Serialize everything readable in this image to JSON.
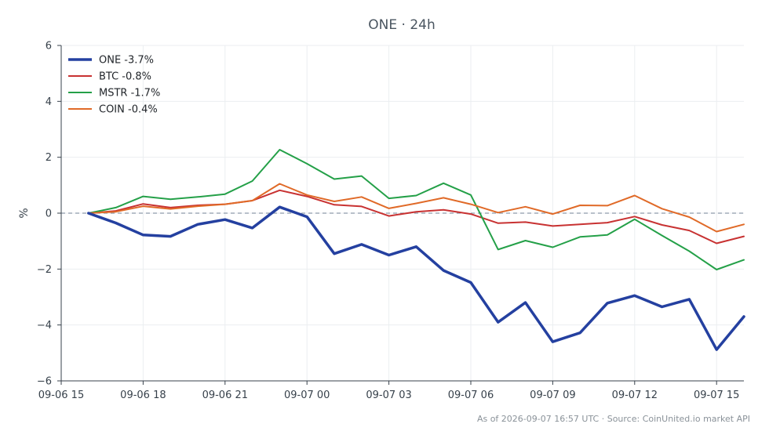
{
  "chart_data": {
    "type": "line",
    "title": "ONE · 24h",
    "xlabel": "",
    "ylabel": "%",
    "ylim": [
      -6,
      6
    ],
    "yticks": [
      -6,
      -4,
      -2,
      0,
      2,
      4,
      6
    ],
    "ytick_labels": [
      "−6",
      "−4",
      "−2",
      "0",
      "2",
      "4",
      "6"
    ],
    "x": [
      "09-06 16:00",
      "09-06 17:00",
      "09-06 18:00",
      "09-06 19:00",
      "09-06 20:00",
      "09-06 21:00",
      "09-06 22:00",
      "09-06 23:00",
      "09-07 00:00",
      "09-07 01:00",
      "09-07 02:00",
      "09-07 03:00",
      "09-07 04:00",
      "09-07 05:00",
      "09-07 06:00",
      "09-07 07:00",
      "09-07 08:00",
      "09-07 09:00",
      "09-07 10:00",
      "09-07 11:00",
      "09-07 12:00",
      "09-07 13:00",
      "09-07 14:00",
      "09-07 15:00",
      "09-07 16:00"
    ],
    "xlim": [
      "09-06 15:00",
      "09-07 16:00"
    ],
    "xticks": [
      "09-06 15:00",
      "09-06 18:00",
      "09-06 21:00",
      "09-07 00:00",
      "09-07 03:00",
      "09-07 06:00",
      "09-07 09:00",
      "09-07 12:00",
      "09-07 15:00"
    ],
    "xtick_labels": [
      "09-06 15",
      "09-06 18",
      "09-06 21",
      "09-07 00",
      "09-07 03",
      "09-07 06",
      "09-07 09",
      "09-07 12",
      "09-07 15"
    ],
    "zero_line": true,
    "grid": true,
    "legend_position": "top-left",
    "series": [
      {
        "name": "ONE -3.7%",
        "color": "#2440a0",
        "emphasis": true,
        "values": [
          0,
          -0.35,
          -0.78,
          -0.83,
          -0.4,
          -0.23,
          -0.53,
          0.22,
          -0.13,
          -1.45,
          -1.12,
          -1.5,
          -1.2,
          -2.05,
          -2.48,
          -3.9,
          -3.2,
          -4.6,
          -4.28,
          -3.22,
          -2.95,
          -3.35,
          -3.08,
          -4.88,
          -3.7
        ]
      },
      {
        "name": "BTC -0.8%",
        "color": "#c83232",
        "emphasis": false,
        "values": [
          0,
          0.08,
          0.33,
          0.2,
          0.28,
          0.32,
          0.45,
          0.82,
          0.6,
          0.3,
          0.24,
          -0.1,
          0.05,
          0.12,
          -0.03,
          -0.36,
          -0.32,
          -0.46,
          -0.4,
          -0.34,
          -0.12,
          -0.42,
          -0.62,
          -1.08,
          -0.83
        ]
      },
      {
        "name": "MSTR -1.7%",
        "color": "#24a048",
        "emphasis": false,
        "values": [
          0,
          0.2,
          0.6,
          0.5,
          0.58,
          0.68,
          1.15,
          2.27,
          1.77,
          1.22,
          1.33,
          0.53,
          0.63,
          1.07,
          0.65,
          -1.3,
          -0.98,
          -1.22,
          -0.85,
          -0.78,
          -0.22,
          -0.8,
          -1.36,
          -2.02,
          -1.67
        ]
      },
      {
        "name": "COIN -0.4%",
        "color": "#e06a28",
        "emphasis": false,
        "values": [
          0,
          0.05,
          0.25,
          0.15,
          0.25,
          0.32,
          0.45,
          1.05,
          0.65,
          0.42,
          0.58,
          0.17,
          0.35,
          0.55,
          0.32,
          0.02,
          0.23,
          -0.03,
          0.28,
          0.27,
          0.63,
          0.16,
          -0.14,
          -0.66,
          -0.4
        ]
      }
    ]
  },
  "footnote": "As of 2026-09-07 16:57 UTC · Source: CoinUnited.io market API"
}
